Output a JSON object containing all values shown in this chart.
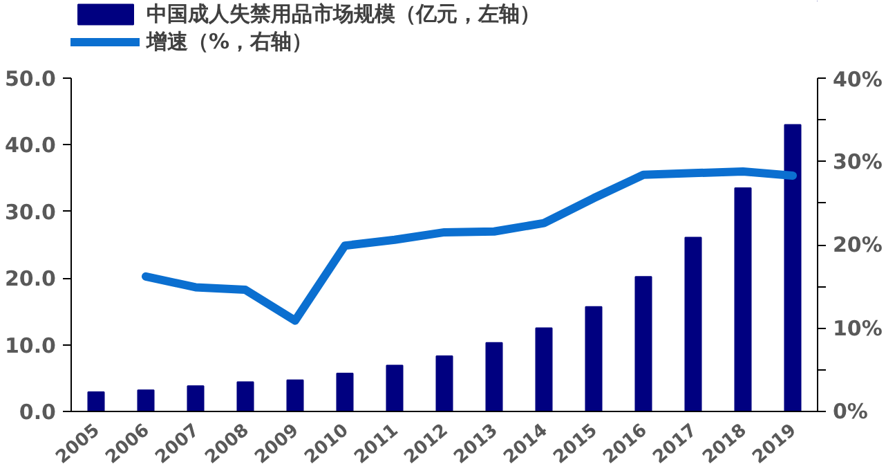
{
  "chart_data": {
    "type": "bar",
    "categories": [
      "2005",
      "2006",
      "2007",
      "2008",
      "2009",
      "2010",
      "2011",
      "2012",
      "2013",
      "2014",
      "2015",
      "2016",
      "2017",
      "2018",
      "2019"
    ],
    "series": [
      {
        "name": "中国成人失禁用品市场规模（亿元，左轴）",
        "color": "#000080",
        "values": [
          2.9,
          3.2,
          3.8,
          4.4,
          4.7,
          5.7,
          6.9,
          8.3,
          10.3,
          12.5,
          15.7,
          20.2,
          26.1,
          33.5,
          43.0
        ]
      },
      {
        "name": "增速（%，右轴）",
        "color": "#0b6fd0",
        "type": "line",
        "axis": "y2",
        "values": [
          null,
          16.2,
          14.9,
          14.6,
          10.9,
          19.9,
          20.6,
          21.5,
          21.6,
          22.6,
          25.6,
          28.4,
          28.6,
          28.8,
          28.3
        ]
      }
    ],
    "ylim": [
      0,
      50
    ],
    "yticks": [
      {
        "value": 0,
        "label": "0.0"
      },
      {
        "value": 10,
        "label": "10.0"
      },
      {
        "value": 20,
        "label": "20.0"
      },
      {
        "value": 30,
        "label": "30.0"
      },
      {
        "value": 40,
        "label": "40.0"
      },
      {
        "value": 50,
        "label": "50.0"
      }
    ],
    "y2lim": [
      0,
      40
    ],
    "y2ticks": [
      {
        "value": 0,
        "label": "0%"
      },
      {
        "value": 5,
        "label": null
      },
      {
        "value": 10,
        "label": "10%"
      },
      {
        "value": 15,
        "label": null
      },
      {
        "value": 20,
        "label": "20%"
      },
      {
        "value": 25,
        "label": null
      },
      {
        "value": 30,
        "label": "30%"
      },
      {
        "value": 35,
        "label": null
      },
      {
        "value": 40,
        "label": "40%"
      }
    ],
    "legend": "top left",
    "grid": false
  }
}
